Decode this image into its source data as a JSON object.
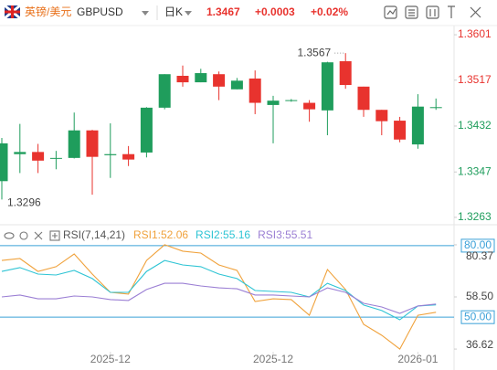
{
  "header": {
    "name": "英镑/美元",
    "symbol": "GBPUSD",
    "period": "日K",
    "price": "1.3467",
    "change": "+0.0003",
    "change_pct": "+0.02%"
  },
  "chart_data": [
    {
      "type": "candlestick",
      "up_color": "#1f9d5c",
      "down_color": "#e8332e",
      "open": [
        1.333,
        1.338,
        1.3384,
        1.3372,
        1.3373,
        1.3424,
        1.3378,
        1.338,
        1.3383,
        1.3466,
        1.3525,
        1.3513,
        1.3528,
        1.35,
        1.352,
        1.3471,
        1.3479,
        1.3475,
        1.3461,
        1.3552,
        1.3505,
        1.3462,
        1.3442,
        1.3398,
        1.3467
      ],
      "high": [
        1.341,
        1.3436,
        1.3399,
        1.3386,
        1.3457,
        1.3425,
        1.3437,
        1.3395,
        1.3467,
        1.3528,
        1.3544,
        1.3538,
        1.3533,
        1.3521,
        1.3535,
        1.3488,
        1.3482,
        1.348,
        1.3551,
        1.3567,
        1.3505,
        1.3462,
        1.3449,
        1.3491,
        1.3483
      ],
      "low": [
        1.3296,
        1.3345,
        1.3345,
        1.3352,
        1.3372,
        1.3305,
        1.3336,
        1.3358,
        1.3374,
        1.3463,
        1.3505,
        1.3513,
        1.348,
        1.35,
        1.3454,
        1.34,
        1.3477,
        1.344,
        1.3415,
        1.3501,
        1.3449,
        1.3415,
        1.3402,
        1.339,
        1.3462
      ],
      "close": [
        1.34,
        1.3384,
        1.3368,
        1.3373,
        1.3424,
        1.3375,
        1.338,
        1.337,
        1.3466,
        1.3528,
        1.3513,
        1.353,
        1.3505,
        1.3516,
        1.3475,
        1.3479,
        1.348,
        1.3463,
        1.355,
        1.3508,
        1.3462,
        1.3441,
        1.3407,
        1.3468,
        1.3467
      ],
      "max_label": 1.3567,
      "min_label": 1.3296,
      "ylim": [
        1.3251,
        1.3618
      ],
      "yticks": [
        1.3601,
        1.3517,
        1.3432,
        1.3347,
        1.3263
      ]
    },
    {
      "type": "line",
      "title": "RSI(7,14,21)",
      "categories": [
        null,
        null,
        null,
        null,
        null,
        null,
        "2025-12",
        null,
        null,
        null,
        null,
        null,
        null,
        null,
        null,
        "2025-12",
        null,
        null,
        null,
        null,
        null,
        null,
        null,
        "2026-01",
        null
      ],
      "series": [
        {
          "name": "RSI1:52.06",
          "color": "#f0a23c",
          "values": [
            73.8,
            74.6,
            69.2,
            71.2,
            76.5,
            68.1,
            60.4,
            59.7,
            73.8,
            80.37,
            77.7,
            76.9,
            71.9,
            69.6,
            56.6,
            57.7,
            57.4,
            50.8,
            70.0,
            61.6,
            47.0,
            42.4,
            36.62,
            50.8,
            52.06
          ]
        },
        {
          "name": "RSI2:55.16",
          "color": "#2ec4d4",
          "values": [
            69.2,
            70.8,
            68.1,
            67.7,
            69.6,
            66.2,
            60.4,
            60.4,
            69.2,
            73.8,
            71.9,
            71.2,
            68.1,
            66.2,
            61.2,
            60.8,
            60.4,
            58.5,
            64.2,
            61.2,
            55.1,
            52.8,
            48.9,
            54.7,
            55.16
          ]
        },
        {
          "name": "RSI3:55.51",
          "color": "#9b7fd4",
          "values": [
            58.5,
            59.3,
            57.7,
            57.7,
            58.9,
            58.5,
            57.4,
            57.0,
            61.6,
            64.2,
            64.2,
            63.1,
            62.3,
            61.9,
            59.3,
            59.3,
            58.9,
            58.5,
            62.3,
            60.4,
            55.8,
            54.3,
            51.6,
            54.7,
            55.51
          ]
        }
      ],
      "levels": [
        {
          "value": 80,
          "label": "80.00"
        },
        {
          "value": 50,
          "label": "50.00"
        }
      ],
      "level_color": "#3aa0d8",
      "ylim": [
        35.5,
        81.5
      ],
      "yticks": [
        {
          "value": 80.37,
          "label": "80.37"
        },
        {
          "value": 58.5,
          "label": "58.50"
        },
        {
          "value": 36.62,
          "label": "36.62"
        }
      ]
    }
  ]
}
